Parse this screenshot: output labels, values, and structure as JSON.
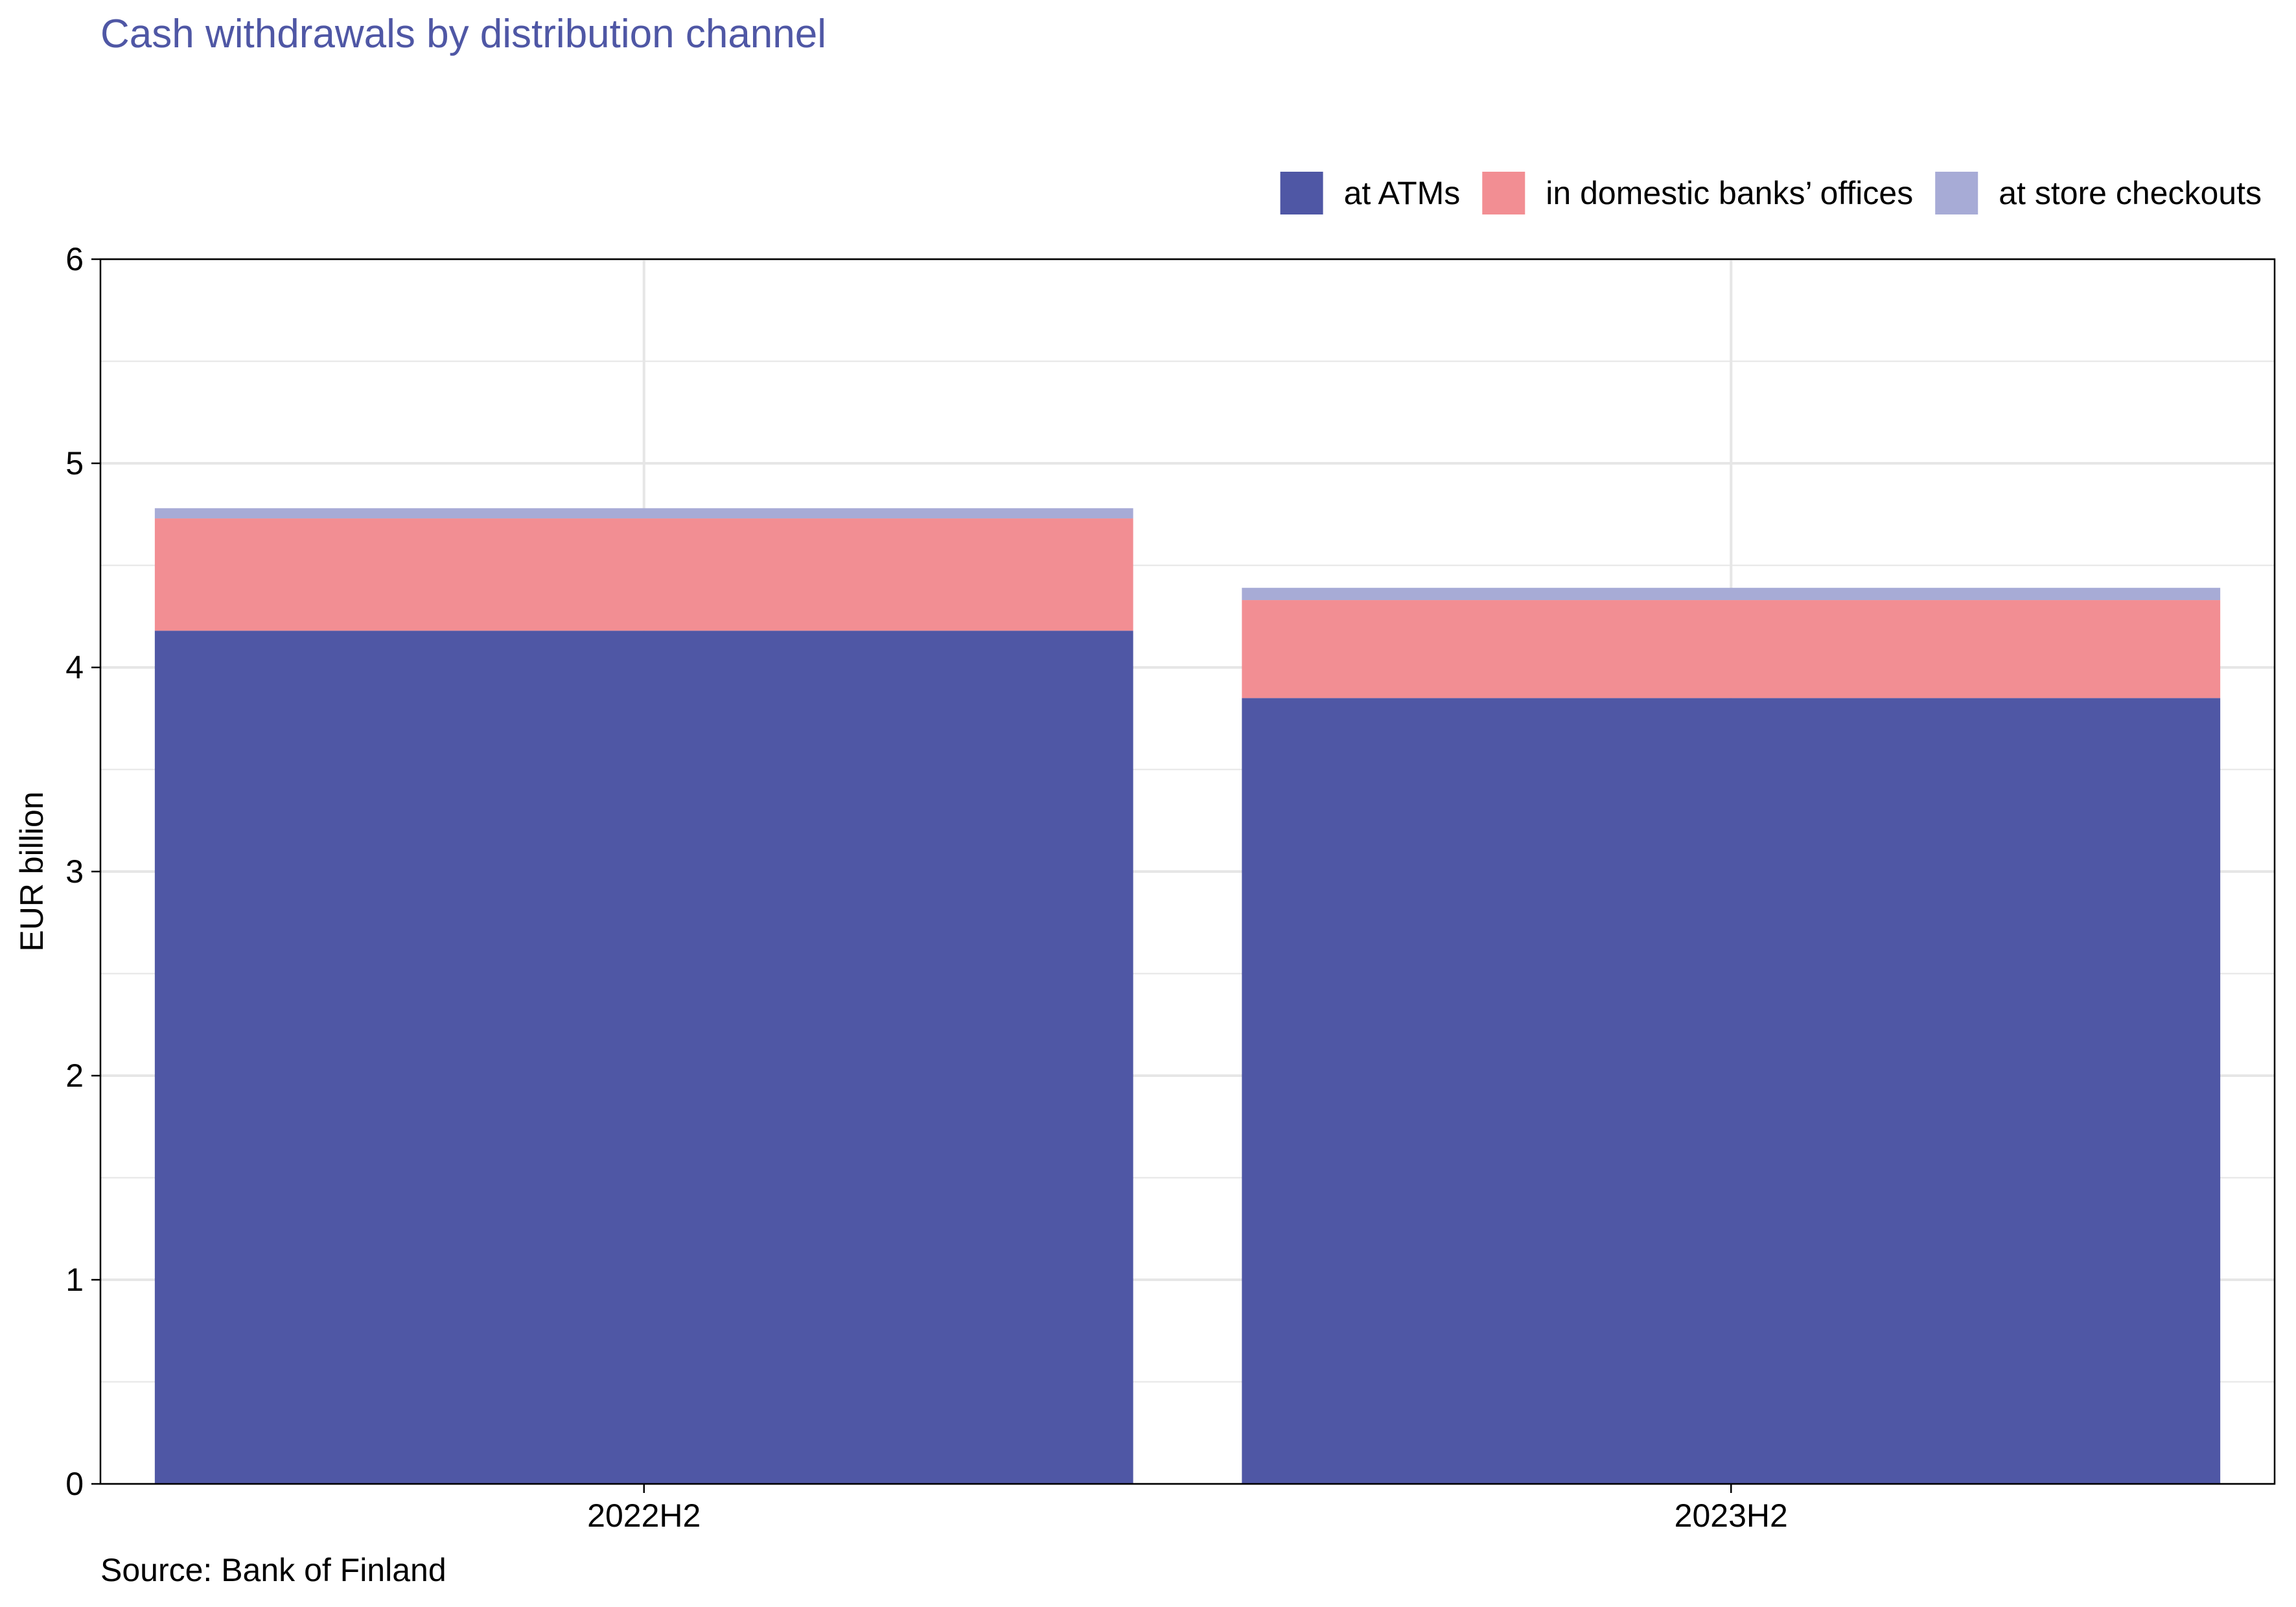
{
  "chart_data": {
    "type": "bar",
    "stacked": true,
    "title": "Cash withdrawals by distribution channel",
    "ylabel": "EUR billion",
    "xlabel": "",
    "source": "Source: Bank of Finland",
    "categories": [
      "2022H2",
      "2023H2"
    ],
    "ylim": [
      0,
      6
    ],
    "yticks": [
      "0",
      "1",
      "2",
      "3",
      "4",
      "5",
      "6"
    ],
    "grid": true,
    "legend_position": "top-right",
    "series": [
      {
        "name": "at ATMs",
        "color": "#4F57A5",
        "values": [
          4.18,
          3.85
        ]
      },
      {
        "name": "in domestic banks’ offices",
        "color": "#F28E93",
        "values": [
          0.55,
          0.48
        ]
      },
      {
        "name": "at store checkouts",
        "color": "#A7ABD6",
        "values": [
          0.05,
          0.06
        ]
      }
    ],
    "colors": {
      "title": "#4F57A5",
      "grid": "#E6E6E6",
      "axis": "#000000"
    }
  }
}
